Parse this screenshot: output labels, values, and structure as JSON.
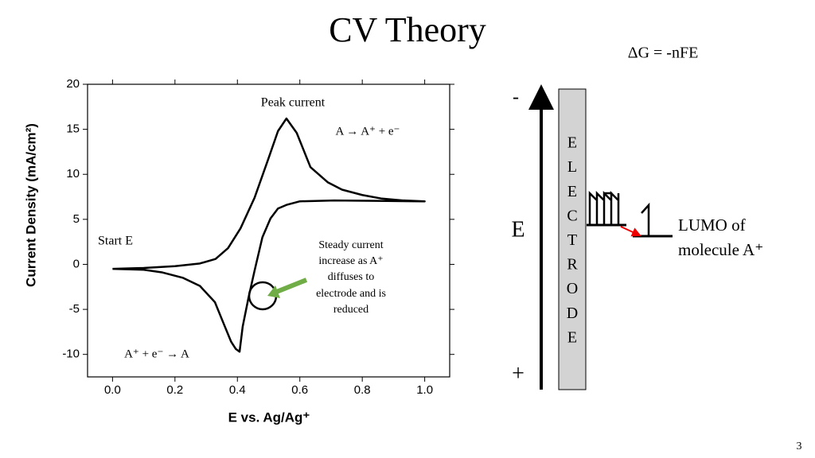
{
  "slide": {
    "title": "CV Theory",
    "equation": "ΔG = -nFE",
    "page_number": "3"
  },
  "chart_data": {
    "type": "line",
    "x_label": "E vs. Ag/Ag⁺",
    "y_label": "Current Density (mA/cm²)",
    "annotations": [
      "Peak current",
      "A → A⁺ + e⁻",
      "Start E",
      [
        "Steady current",
        "increase as A⁺",
        "diffuses to",
        "electrode and is",
        "reduced"
      ],
      "A⁺ + e⁻ → A"
    ],
    "x": [
      0,
      0.1,
      0.2,
      0.28,
      0.33,
      0.37,
      0.41,
      0.455,
      0.5,
      0.53,
      0.557,
      0.59,
      0.634,
      0.69,
      0.735,
      0.8,
      0.863,
      0.93,
      1.0,
      0.85,
      0.71,
      0.6,
      0.557,
      0.53,
      0.506,
      0.48,
      0.455,
      0.435,
      0.417,
      0.407,
      0.395,
      0.38,
      0.355,
      0.328,
      0.28,
      0.226,
      0.16,
      0.1,
      0
    ],
    "values": [
      -0.5,
      -0.4,
      -0.2,
      0.1,
      0.6,
      1.8,
      4.0,
      7.4,
      11.8,
      14.8,
      16.2,
      14.6,
      10.8,
      9.1,
      8.3,
      7.7,
      7.3,
      7.1,
      7.0,
      7.05,
      7.1,
      7.0,
      6.6,
      6.2,
      5.1,
      3.0,
      -0.7,
      -3.8,
      -6.9,
      -9.7,
      -9.4,
      -8.6,
      -6.5,
      -4.2,
      -2.4,
      -1.5,
      -0.9,
      -0.6,
      -0.5
    ],
    "color": "#000000",
    "xlim": [
      -0.08,
      1.08
    ],
    "ylim": [
      -12.5,
      20
    ],
    "xticks": [
      {
        "value": 0,
        "label": "0.0"
      },
      {
        "value": 0.2,
        "label": "0.2"
      },
      {
        "value": 0.4,
        "label": "0.4"
      },
      {
        "value": 0.6,
        "label": "0.6"
      },
      {
        "value": 0.8,
        "label": "0.8"
      },
      {
        "value": 1,
        "label": "1.0"
      }
    ],
    "yticks": [
      -10,
      -5,
      0,
      5,
      10,
      15,
      20
    ]
  },
  "diagram": {
    "minus": "-",
    "axis_label": "E",
    "plus": "+",
    "electrode_letters": [
      "E",
      "L",
      "E",
      "C",
      "T",
      "R",
      "O",
      "D",
      "E"
    ],
    "lumo": [
      "LUMO of",
      "molecule A⁺"
    ]
  }
}
